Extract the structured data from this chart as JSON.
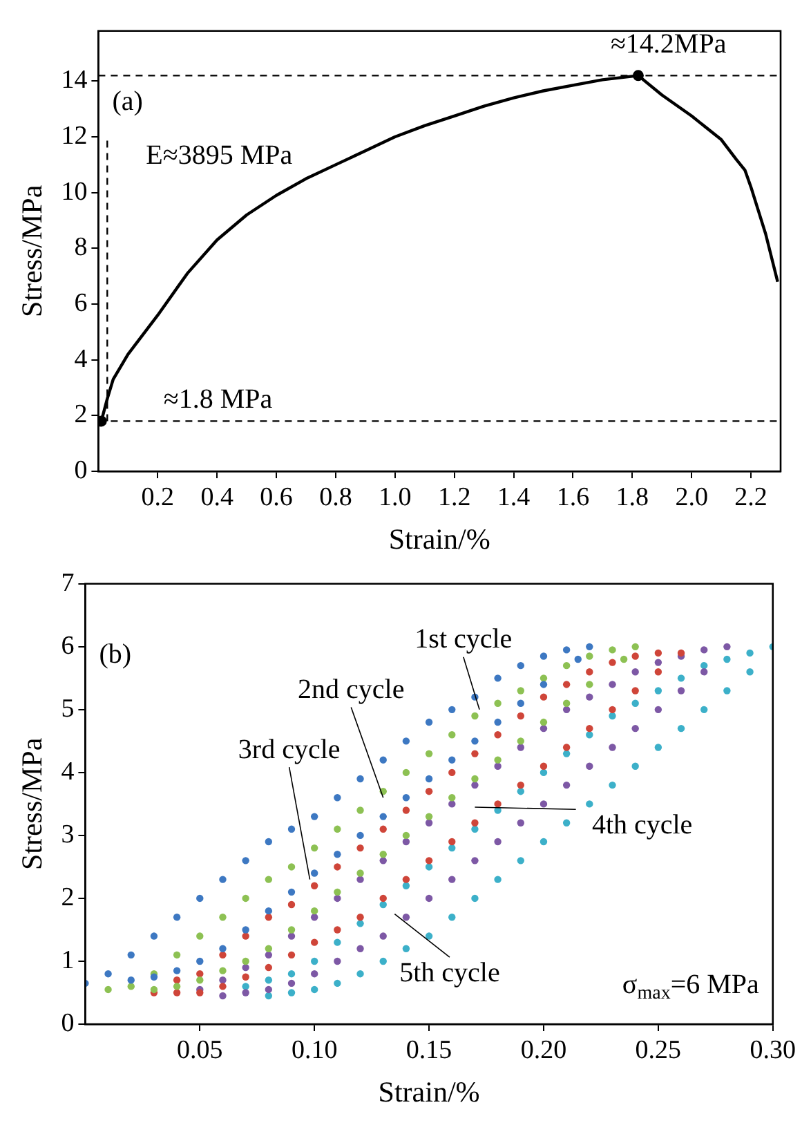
{
  "chart_data": [
    {
      "type": "line",
      "xlabel": "Strain/%",
      "ylabel": "Stress/MPa",
      "xlim": [
        0,
        2.3
      ],
      "ylim": [
        0,
        15.8
      ],
      "xticks": [
        0.2,
        0.4,
        0.6,
        0.8,
        {
          "value": 1.0,
          "label": "1.0"
        },
        1.2,
        1.4,
        1.6,
        1.8,
        {
          "value": 2.0,
          "label": "2.0"
        },
        2.2
      ],
      "yticks": [
        0,
        2,
        4,
        6,
        8,
        10,
        12,
        14
      ],
      "grid": false,
      "legend": false,
      "annotations": [
        "(a)",
        {
          "text": "≈14.2MPa",
          "x": 1.82,
          "y": 14.2
        },
        {
          "text": "≈1.8 MPa",
          "x": 0.01,
          "y": 1.8
        },
        {
          "text": "E≈3895 MPa",
          "x": 0.03,
          "y": 12
        }
      ],
      "ref_lines": [
        {
          "axis": "y",
          "value": 14.2,
          "line_style": "dashed",
          "color": "#000000"
        },
        {
          "axis": "y",
          "value": 1.8,
          "line_style": "dashed",
          "color": "#000000"
        }
      ],
      "series": [
        {
          "type": "line",
          "color": "#000000",
          "line_style": "solid",
          "marker": "none",
          "x": [
            0.01,
            0.03,
            0.05,
            0.1,
            0.15,
            0.2,
            0.3,
            0.4,
            0.5,
            0.6,
            0.7,
            0.8,
            0.9,
            1.0,
            1.1,
            1.2,
            1.3,
            1.4,
            1.5,
            1.6,
            1.7,
            1.82,
            1.9,
            2.0,
            2.1,
            2.15,
            2.18,
            2.2,
            2.25,
            2.29
          ],
          "values": [
            1.8,
            2.6,
            3.3,
            4.2,
            4.9,
            5.6,
            7.1,
            8.3,
            9.2,
            9.9,
            10.5,
            11.0,
            11.5,
            12.0,
            12.4,
            12.75,
            13.1,
            13.4,
            13.65,
            13.85,
            14.05,
            14.2,
            13.5,
            12.75,
            11.9,
            11.2,
            10.8,
            10.2,
            8.5,
            6.8
          ]
        },
        {
          "type": "scatter",
          "color": "#000000",
          "marker": "circle",
          "x": [
            0.01,
            1.82
          ],
          "values": [
            1.8,
            14.2
          ]
        },
        {
          "type": "line",
          "color": "#000000",
          "line_style": "dashed",
          "marker": "none",
          "x": [
            0.03,
            0.03
          ],
          "values": [
            1.8,
            12
          ]
        }
      ]
    },
    {
      "type": "scatter",
      "xlabel": "Strain/%",
      "ylabel": "Stress/MPa",
      "xlim": [
        0,
        0.3
      ],
      "ylim": [
        0,
        7
      ],
      "xticks": [
        {
          "value": 0.05,
          "label": "0.05"
        },
        {
          "value": 0.1,
          "label": "0.10"
        },
        {
          "value": 0.15,
          "label": "0.15"
        },
        {
          "value": 0.2,
          "label": "0.20"
        },
        {
          "value": 0.25,
          "label": "0.25"
        },
        {
          "value": 0.3,
          "label": "0.30"
        }
      ],
      "yticks": [
        0,
        1,
        2,
        3,
        4,
        5,
        6,
        7
      ],
      "grid": false,
      "legend": false,
      "marker": "circle",
      "annotations": [
        "(b)",
        "σ$_{max}$=6 MPa"
      ],
      "series": [
        {
          "name": "1st cycle",
          "color": "#3d78c2",
          "x": [
            0,
            0.01,
            0.02,
            0.03,
            0.04,
            0.05,
            0.06,
            0.07,
            0.08,
            0.09,
            0.1,
            0.11,
            0.12,
            0.13,
            0.14,
            0.15,
            0.16,
            0.17,
            0.18,
            0.19,
            0.2,
            0.21,
            0.22,
            0.215,
            0.2,
            0.19,
            0.18,
            0.17,
            0.16,
            0.15,
            0.14,
            0.13,
            0.12,
            0.11,
            0.1,
            0.09,
            0.08,
            0.07,
            0.06,
            0.05,
            0.04,
            0.03,
            0.02
          ],
          "values": [
            0.65,
            0.8,
            1.1,
            1.4,
            1.7,
            2.0,
            2.3,
            2.6,
            2.9,
            3.1,
            3.3,
            3.6,
            3.9,
            4.2,
            4.5,
            4.8,
            5.0,
            5.2,
            5.5,
            5.7,
            5.85,
            5.95,
            6.0,
            5.8,
            5.4,
            5.1,
            4.8,
            4.5,
            4.2,
            3.9,
            3.6,
            3.3,
            3.0,
            2.7,
            2.4,
            2.1,
            1.8,
            1.5,
            1.2,
            1.0,
            0.85,
            0.75,
            0.7
          ]
        },
        {
          "name": "2nd cycle",
          "color": "#8dc153",
          "x": [
            0.01,
            0.02,
            0.03,
            0.04,
            0.05,
            0.06,
            0.07,
            0.08,
            0.09,
            0.1,
            0.11,
            0.12,
            0.13,
            0.14,
            0.15,
            0.16,
            0.17,
            0.18,
            0.19,
            0.2,
            0.21,
            0.22,
            0.23,
            0.24,
            0.235,
            0.22,
            0.21,
            0.2,
            0.19,
            0.18,
            0.17,
            0.16,
            0.15,
            0.14,
            0.13,
            0.12,
            0.11,
            0.1,
            0.09,
            0.08,
            0.07,
            0.06,
            0.05,
            0.04,
            0.03
          ],
          "values": [
            0.55,
            0.6,
            0.8,
            1.1,
            1.4,
            1.7,
            2.0,
            2.3,
            2.5,
            2.8,
            3.1,
            3.4,
            3.7,
            4.0,
            4.3,
            4.6,
            4.9,
            5.1,
            5.3,
            5.5,
            5.7,
            5.85,
            5.95,
            6.0,
            5.8,
            5.4,
            5.1,
            4.8,
            4.5,
            4.2,
            3.9,
            3.6,
            3.3,
            3.0,
            2.7,
            2.4,
            2.1,
            1.8,
            1.5,
            1.2,
            1.0,
            0.85,
            0.7,
            0.6,
            0.55
          ]
        },
        {
          "name": "3rd cycle",
          "color": "#cf4539",
          "x": [
            0.03,
            0.04,
            0.05,
            0.06,
            0.07,
            0.08,
            0.09,
            0.1,
            0.11,
            0.12,
            0.13,
            0.14,
            0.15,
            0.16,
            0.17,
            0.18,
            0.19,
            0.2,
            0.21,
            0.22,
            0.23,
            0.24,
            0.25,
            0.26,
            0.25,
            0.24,
            0.23,
            0.22,
            0.21,
            0.2,
            0.19,
            0.18,
            0.17,
            0.16,
            0.15,
            0.14,
            0.13,
            0.12,
            0.11,
            0.1,
            0.09,
            0.08,
            0.07,
            0.06,
            0.05,
            0.04
          ],
          "values": [
            0.5,
            0.7,
            0.8,
            1.1,
            1.4,
            1.7,
            1.9,
            2.2,
            2.5,
            2.8,
            3.1,
            3.4,
            3.7,
            4.0,
            4.3,
            4.6,
            4.9,
            5.2,
            5.4,
            5.6,
            5.75,
            5.85,
            5.9,
            5.9,
            5.6,
            5.3,
            5.0,
            4.7,
            4.4,
            4.1,
            3.8,
            3.5,
            3.2,
            2.9,
            2.6,
            2.3,
            2.0,
            1.7,
            1.5,
            1.3,
            1.1,
            0.9,
            0.75,
            0.6,
            0.5,
            0.5
          ]
        },
        {
          "name": "4th cycle",
          "color": "#7d58a5",
          "x": [
            0.05,
            0.06,
            0.07,
            0.08,
            0.09,
            0.1,
            0.11,
            0.12,
            0.13,
            0.14,
            0.15,
            0.16,
            0.17,
            0.18,
            0.19,
            0.2,
            0.21,
            0.22,
            0.23,
            0.24,
            0.25,
            0.26,
            0.27,
            0.28,
            0.27,
            0.26,
            0.25,
            0.24,
            0.23,
            0.22,
            0.21,
            0.2,
            0.19,
            0.18,
            0.17,
            0.16,
            0.15,
            0.14,
            0.13,
            0.12,
            0.11,
            0.1,
            0.09,
            0.08,
            0.07,
            0.06
          ],
          "values": [
            0.55,
            0.7,
            0.9,
            1.1,
            1.4,
            1.7,
            2.0,
            2.3,
            2.6,
            2.9,
            3.2,
            3.5,
            3.8,
            4.1,
            4.4,
            4.7,
            5.0,
            5.2,
            5.4,
            5.6,
            5.75,
            5.85,
            5.95,
            6.0,
            5.6,
            5.3,
            5.0,
            4.7,
            4.4,
            4.1,
            3.8,
            3.5,
            3.2,
            2.9,
            2.6,
            2.3,
            2.0,
            1.7,
            1.4,
            1.2,
            1.0,
            0.8,
            0.65,
            0.55,
            0.5,
            0.45
          ]
        },
        {
          "name": "5th cycle",
          "color": "#3cb0c9",
          "x": [
            0.07,
            0.08,
            0.09,
            0.1,
            0.11,
            0.12,
            0.13,
            0.14,
            0.15,
            0.16,
            0.17,
            0.18,
            0.19,
            0.2,
            0.21,
            0.22,
            0.23,
            0.24,
            0.25,
            0.26,
            0.27,
            0.28,
            0.29,
            0.3,
            0.29,
            0.28,
            0.27,
            0.26,
            0.25,
            0.24,
            0.23,
            0.22,
            0.21,
            0.2,
            0.19,
            0.18,
            0.17,
            0.16,
            0.15,
            0.14,
            0.13,
            0.12,
            0.11,
            0.1,
            0.09,
            0.08
          ],
          "values": [
            0.6,
            0.7,
            0.8,
            1.0,
            1.3,
            1.6,
            1.9,
            2.2,
            2.5,
            2.8,
            3.1,
            3.4,
            3.7,
            4.0,
            4.3,
            4.6,
            4.9,
            5.1,
            5.3,
            5.5,
            5.7,
            5.8,
            5.9,
            6.0,
            5.6,
            5.3,
            5.0,
            4.7,
            4.4,
            4.1,
            3.8,
            3.5,
            3.2,
            2.9,
            2.6,
            2.3,
            2.0,
            1.7,
            1.4,
            1.2,
            1.0,
            0.8,
            0.65,
            0.55,
            0.5,
            0.45
          ]
        }
      ]
    }
  ]
}
